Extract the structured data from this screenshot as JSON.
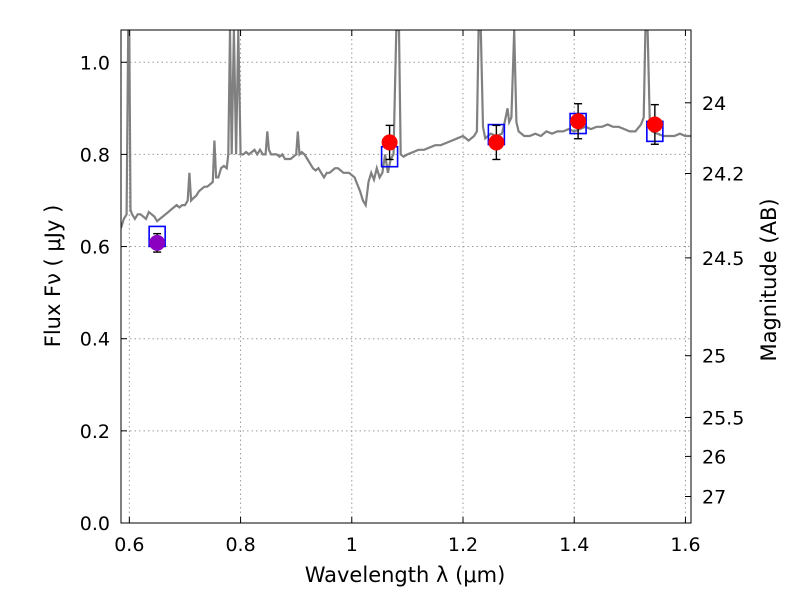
{
  "chart_data": {
    "type": "scatter",
    "xlabel": "Wavelength  λ (μm)",
    "ylabel": "Flux  Fν  ( μJy )",
    "y2label": "Magnitude (AB)",
    "xlim": [
      0.585,
      1.61
    ],
    "ylim": [
      0.0,
      1.07
    ],
    "x_ticks": [
      0.6,
      0.8,
      1.0,
      1.2,
      1.4,
      1.6
    ],
    "x_tick_labels": [
      "0.6",
      "0.8",
      "1",
      "1.2",
      "1.4",
      "1.6"
    ],
    "y_ticks": [
      0.0,
      0.2,
      0.4,
      0.6,
      0.8,
      1.0
    ],
    "y_tick_labels": [
      "0.0",
      "0.2",
      "0.4",
      "0.6",
      "0.8",
      "1.0"
    ],
    "mag_ticks": [
      24,
      24.2,
      24.5,
      25,
      25.5,
      26,
      27
    ],
    "mag_tick_labels": [
      "24",
      "24.2",
      "24.5",
      "25",
      "25.5",
      "26",
      "27"
    ],
    "grid": true,
    "colors": {
      "spectrum": "#808080",
      "model_box": "#0000ff",
      "observed": "#ff0000",
      "first_point": "#8b00c0",
      "errorbar": "#000000",
      "grid": "#9a9a9a"
    },
    "observed_points": [
      {
        "x": 0.65,
        "y": 0.608,
        "err": 0.02
      },
      {
        "x": 1.068,
        "y": 0.826,
        "err": 0.037
      },
      {
        "x": 1.26,
        "y": 0.826,
        "err": 0.037
      },
      {
        "x": 1.407,
        "y": 0.872,
        "err": 0.038
      },
      {
        "x": 1.545,
        "y": 0.865,
        "err": 0.043
      }
    ],
    "model_points": [
      {
        "x": 0.65,
        "y": 0.622
      },
      {
        "x": 1.068,
        "y": 0.795
      },
      {
        "x": 1.26,
        "y": 0.843
      },
      {
        "x": 1.407,
        "y": 0.867
      },
      {
        "x": 1.545,
        "y": 0.85
      }
    ],
    "spectrum": [
      [
        0.585,
        0.64
      ],
      [
        0.59,
        0.66
      ],
      [
        0.595,
        0.67
      ],
      [
        0.598,
        1.07
      ],
      [
        0.6,
        1.07
      ],
      [
        0.602,
        0.68
      ],
      [
        0.605,
        0.67
      ],
      [
        0.61,
        0.66
      ],
      [
        0.615,
        0.67
      ],
      [
        0.62,
        0.67
      ],
      [
        0.625,
        0.665
      ],
      [
        0.63,
        0.66
      ],
      [
        0.635,
        0.675
      ],
      [
        0.64,
        0.67
      ],
      [
        0.645,
        0.665
      ],
      [
        0.65,
        0.655
      ],
      [
        0.655,
        0.66
      ],
      [
        0.66,
        0.665
      ],
      [
        0.665,
        0.67
      ],
      [
        0.67,
        0.675
      ],
      [
        0.675,
        0.68
      ],
      [
        0.68,
        0.685
      ],
      [
        0.685,
        0.69
      ],
      [
        0.69,
        0.685
      ],
      [
        0.695,
        0.69
      ],
      [
        0.7,
        0.69
      ],
      [
        0.705,
        0.7
      ],
      [
        0.708,
        0.76
      ],
      [
        0.711,
        0.7
      ],
      [
        0.715,
        0.705
      ],
      [
        0.72,
        0.71
      ],
      [
        0.725,
        0.72
      ],
      [
        0.73,
        0.725
      ],
      [
        0.735,
        0.73
      ],
      [
        0.74,
        0.73
      ],
      [
        0.745,
        0.735
      ],
      [
        0.75,
        0.74
      ],
      [
        0.753,
        0.83
      ],
      [
        0.756,
        0.75
      ],
      [
        0.76,
        0.75
      ],
      [
        0.765,
        0.77
      ],
      [
        0.77,
        0.775
      ],
      [
        0.775,
        0.77
      ],
      [
        0.778,
        0.8
      ],
      [
        0.781,
        1.07
      ],
      [
        0.784,
        0.8
      ],
      [
        0.788,
        1.07
      ],
      [
        0.792,
        0.8
      ],
      [
        0.796,
        1.07
      ],
      [
        0.8,
        0.8
      ],
      [
        0.805,
        0.8
      ],
      [
        0.81,
        0.805
      ],
      [
        0.815,
        0.8
      ],
      [
        0.82,
        0.805
      ],
      [
        0.825,
        0.81
      ],
      [
        0.83,
        0.8
      ],
      [
        0.835,
        0.81
      ],
      [
        0.84,
        0.8
      ],
      [
        0.845,
        0.8
      ],
      [
        0.848,
        0.85
      ],
      [
        0.851,
        0.81
      ],
      [
        0.855,
        0.8
      ],
      [
        0.86,
        0.8
      ],
      [
        0.865,
        0.8
      ],
      [
        0.87,
        0.795
      ],
      [
        0.875,
        0.8
      ],
      [
        0.88,
        0.79
      ],
      [
        0.885,
        0.79
      ],
      [
        0.89,
        0.79
      ],
      [
        0.895,
        0.795
      ],
      [
        0.9,
        0.8
      ],
      [
        0.903,
        0.85
      ],
      [
        0.906,
        0.8
      ],
      [
        0.91,
        0.805
      ],
      [
        0.915,
        0.8
      ],
      [
        0.92,
        0.79
      ],
      [
        0.925,
        0.78
      ],
      [
        0.93,
        0.77
      ],
      [
        0.935,
        0.765
      ],
      [
        0.94,
        0.77
      ],
      [
        0.945,
        0.76
      ],
      [
        0.95,
        0.75
      ],
      [
        0.955,
        0.76
      ],
      [
        0.96,
        0.76
      ],
      [
        0.965,
        0.765
      ],
      [
        0.97,
        0.77
      ],
      [
        0.975,
        0.77
      ],
      [
        0.98,
        0.765
      ],
      [
        0.985,
        0.76
      ],
      [
        0.99,
        0.76
      ],
      [
        0.995,
        0.76
      ],
      [
        1.0,
        0.755
      ],
      [
        1.005,
        0.75
      ],
      [
        1.01,
        0.735
      ],
      [
        1.015,
        0.72
      ],
      [
        1.02,
        0.7
      ],
      [
        1.025,
        0.69
      ],
      [
        1.03,
        0.74
      ],
      [
        1.035,
        0.76
      ],
      [
        1.04,
        0.745
      ],
      [
        1.045,
        0.77
      ],
      [
        1.05,
        0.75
      ],
      [
        1.055,
        0.76
      ],
      [
        1.06,
        0.8
      ],
      [
        1.065,
        0.76
      ],
      [
        1.07,
        0.79
      ],
      [
        1.075,
        0.8
      ],
      [
        1.08,
        1.07
      ],
      [
        1.085,
        1.07
      ],
      [
        1.088,
        0.8
      ],
      [
        1.093,
        0.795
      ],
      [
        1.1,
        0.8
      ],
      [
        1.11,
        0.805
      ],
      [
        1.12,
        0.81
      ],
      [
        1.13,
        0.81
      ],
      [
        1.14,
        0.815
      ],
      [
        1.15,
        0.82
      ],
      [
        1.16,
        0.82
      ],
      [
        1.17,
        0.825
      ],
      [
        1.18,
        0.83
      ],
      [
        1.19,
        0.835
      ],
      [
        1.2,
        0.84
      ],
      [
        1.21,
        0.83
      ],
      [
        1.22,
        0.84
      ],
      [
        1.225,
        0.85
      ],
      [
        1.228,
        1.07
      ],
      [
        1.232,
        1.07
      ],
      [
        1.236,
        0.86
      ],
      [
        1.24,
        0.835
      ],
      [
        1.245,
        0.84
      ],
      [
        1.25,
        0.845
      ],
      [
        1.26,
        0.84
      ],
      [
        1.27,
        0.845
      ],
      [
        1.275,
        0.87
      ],
      [
        1.28,
        0.9
      ],
      [
        1.283,
        0.87
      ],
      [
        1.287,
        0.88
      ],
      [
        1.292,
        1.07
      ],
      [
        1.296,
        0.87
      ],
      [
        1.3,
        0.85
      ],
      [
        1.31,
        0.84
      ],
      [
        1.32,
        0.84
      ],
      [
        1.33,
        0.845
      ],
      [
        1.34,
        0.84
      ],
      [
        1.35,
        0.85
      ],
      [
        1.36,
        0.845
      ],
      [
        1.37,
        0.85
      ],
      [
        1.38,
        0.85
      ],
      [
        1.39,
        0.855
      ],
      [
        1.4,
        0.85
      ],
      [
        1.41,
        0.855
      ],
      [
        1.42,
        0.86
      ],
      [
        1.43,
        0.855
      ],
      [
        1.44,
        0.86
      ],
      [
        1.45,
        0.86
      ],
      [
        1.46,
        0.865
      ],
      [
        1.47,
        0.86
      ],
      [
        1.48,
        0.86
      ],
      [
        1.49,
        0.855
      ],
      [
        1.5,
        0.85
      ],
      [
        1.51,
        0.85
      ],
      [
        1.52,
        0.865
      ],
      [
        1.525,
        0.88
      ],
      [
        1.528,
        1.07
      ],
      [
        1.532,
        1.07
      ],
      [
        1.536,
        0.87
      ],
      [
        1.54,
        0.85
      ],
      [
        1.55,
        0.845
      ],
      [
        1.56,
        0.84
      ],
      [
        1.57,
        0.84
      ],
      [
        1.58,
        0.84
      ],
      [
        1.59,
        0.845
      ],
      [
        1.6,
        0.84
      ],
      [
        1.61,
        0.84
      ]
    ]
  }
}
